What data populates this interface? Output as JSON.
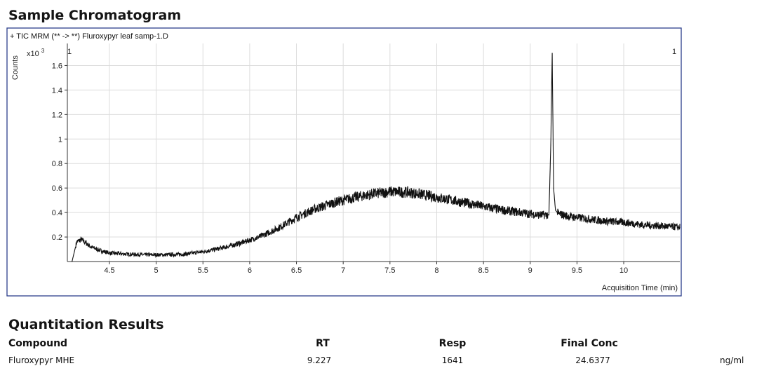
{
  "sample_chromatogram": {
    "title": "Sample Chromatogram"
  },
  "chart_data": {
    "type": "line",
    "trace_label": "+ TIC MRM (** -> **) Fluroxypyr leaf samp-1.D",
    "ylabel": "Counts",
    "y_multiplier": "x10",
    "y_multiplier_exp": "3",
    "xlabel": "Acquisition Time (min)",
    "xlim": [
      4.05,
      10.6
    ],
    "ylim": [
      0,
      1.78
    ],
    "x_ticks": [
      4.5,
      5,
      5.5,
      6,
      6.5,
      7,
      7.5,
      8,
      8.5,
      9,
      9.5,
      10
    ],
    "x_tick_labels": [
      "4.5",
      "5",
      "5.5",
      "6",
      "6.5",
      "7",
      "7.5",
      "8",
      "8.5",
      "9",
      "9.5",
      "10"
    ],
    "y_ticks": [
      0.2,
      0.4,
      0.6,
      0.8,
      1.0,
      1.2,
      1.4,
      1.6
    ],
    "y_tick_labels": [
      "0.2",
      "0.4",
      "0.6",
      "0.8",
      "1",
      "1.2",
      "1.4",
      "1.6"
    ],
    "grid": true,
    "marker_labels": [
      "1",
      "1"
    ],
    "series": [
      {
        "x": [
          4.1,
          4.15,
          4.2,
          4.3,
          4.4,
          4.5,
          4.7,
          4.9,
          5.1,
          5.3,
          5.5,
          5.7,
          5.9,
          6.1,
          6.3,
          6.5,
          6.7,
          6.9,
          7.1,
          7.3,
          7.5,
          7.7,
          7.9,
          8.1,
          8.3,
          8.5,
          8.7,
          8.9,
          9.1,
          9.2,
          9.22,
          9.235,
          9.25,
          9.27,
          9.3,
          9.4,
          9.6,
          9.8,
          10.0,
          10.2,
          10.4,
          10.6
        ],
        "y": [
          0.0,
          0.16,
          0.18,
          0.12,
          0.09,
          0.07,
          0.06,
          0.055,
          0.055,
          0.06,
          0.08,
          0.11,
          0.15,
          0.2,
          0.27,
          0.36,
          0.43,
          0.48,
          0.52,
          0.55,
          0.57,
          0.565,
          0.54,
          0.51,
          0.48,
          0.45,
          0.42,
          0.4,
          0.38,
          0.38,
          0.95,
          1.7,
          0.6,
          0.42,
          0.39,
          0.37,
          0.35,
          0.33,
          0.32,
          0.3,
          0.29,
          0.28
        ]
      }
    ]
  },
  "quantitation": {
    "title": "Quantitation Results",
    "headers": {
      "compound": "Compound",
      "rt": "RT",
      "resp": "Resp",
      "final_conc": "Final Conc"
    },
    "row": {
      "compound": "Fluroxypyr MHE",
      "rt": "9.227",
      "resp": "1641",
      "final_conc": "24.6377",
      "unit": "ng/ml"
    }
  }
}
